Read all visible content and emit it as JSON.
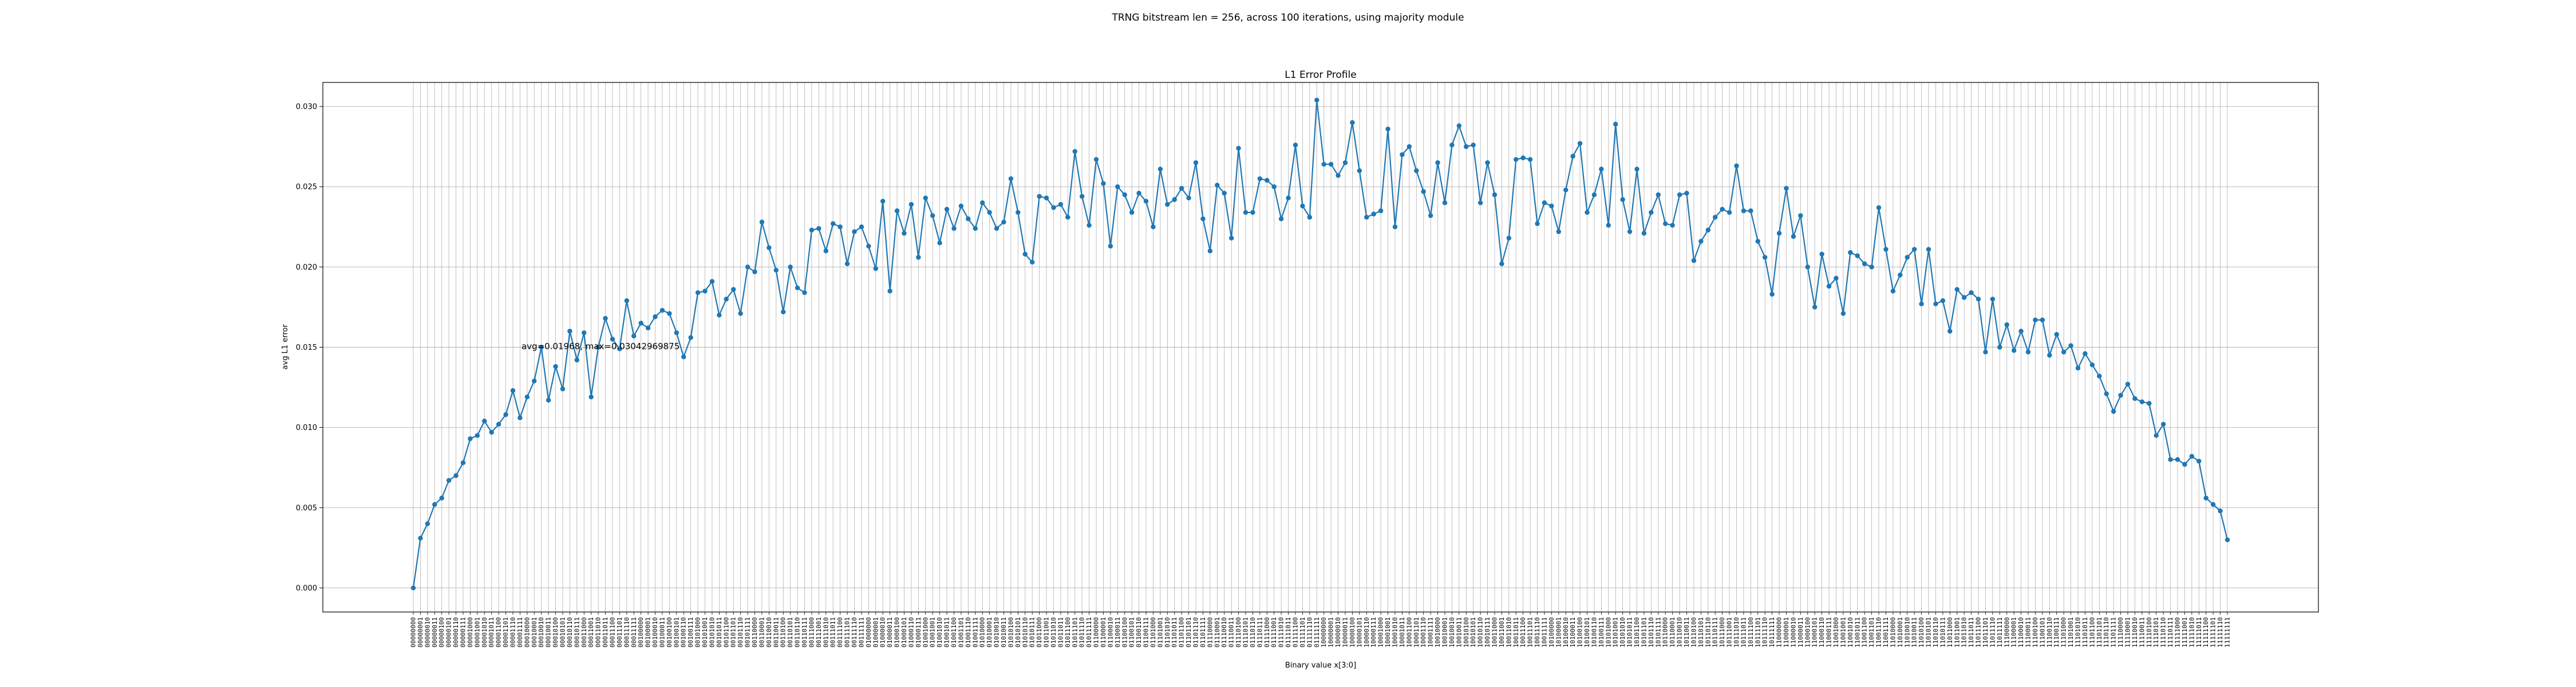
{
  "suptitle": "TRNG bitstream len = 256, across 100 iterations, using majority module",
  "chart_data": {
    "type": "line",
    "title": "L1 Error Profile",
    "xlabel": "Binary value x[3:0]",
    "ylabel": "avg L1 error",
    "ylim": [
      -0.0015,
      0.0315
    ],
    "yticks": [
      0.0,
      0.005,
      0.01,
      0.015,
      0.02,
      0.025,
      0.03
    ],
    "ytick_labels": [
      "0.000",
      "0.005",
      "0.010",
      "0.015",
      "0.020",
      "0.025",
      "0.030"
    ],
    "grid": true,
    "marker": "circle",
    "color": "#1f77b4",
    "annotation": "avg=0.01968, max=0.03042969875",
    "x": [
      "00000000",
      "00000001",
      "00000010",
      "00000011",
      "00000100",
      "00000101",
      "00000110",
      "00000111",
      "00001000",
      "00001001",
      "00001010",
      "00001011",
      "00001100",
      "00001101",
      "00001110",
      "00001111",
      "00010000",
      "00010001",
      "00010010",
      "00010011",
      "00010100",
      "00010101",
      "00010110",
      "00010111",
      "00011000",
      "00011001",
      "00011010",
      "00011011",
      "00011100",
      "00011101",
      "00011110",
      "00011111",
      "00100000",
      "00100001",
      "00100010",
      "00100011",
      "00100100",
      "00100101",
      "00100110",
      "00100111",
      "00101000",
      "00101001",
      "00101010",
      "00101011",
      "00101100",
      "00101101",
      "00101110",
      "00101111",
      "00110000",
      "00110001",
      "00110010",
      "00110011",
      "00110100",
      "00110101",
      "00110110",
      "00110111",
      "00111000",
      "00111001",
      "00111010",
      "00111011",
      "00111100",
      "00111101",
      "00111110",
      "00111111",
      "01000000",
      "01000001",
      "01000010",
      "01000011",
      "01000100",
      "01000101",
      "01000110",
      "01000111",
      "01001000",
      "01001001",
      "01001010",
      "01001011",
      "01001100",
      "01001101",
      "01001110",
      "01001111",
      "01010000",
      "01010001",
      "01010010",
      "01010011",
      "01010100",
      "01010101",
      "01010110",
      "01010111",
      "01011000",
      "01011001",
      "01011010",
      "01011011",
      "01011100",
      "01011101",
      "01011110",
      "01011111",
      "01100000",
      "01100001",
      "01100010",
      "01100011",
      "01100100",
      "01100101",
      "01100110",
      "01100111",
      "01101000",
      "01101001",
      "01101010",
      "01101011",
      "01101100",
      "01101101",
      "01101110",
      "01101111",
      "01110000",
      "01110001",
      "01110010",
      "01110011",
      "01110100",
      "01110101",
      "01110110",
      "01110111",
      "01111000",
      "01111001",
      "01111010",
      "01111011",
      "01111100",
      "01111101",
      "01111110",
      "01111111",
      "10000000",
      "10000001",
      "10000010",
      "10000011",
      "10000100",
      "10000101",
      "10000110",
      "10000111",
      "10001000",
      "10001001",
      "10001010",
      "10001011",
      "10001100",
      "10001101",
      "10001110",
      "10001111",
      "10010000",
      "10010001",
      "10010010",
      "10010011",
      "10010100",
      "10010101",
      "10010110",
      "10010111",
      "10011000",
      "10011001",
      "10011010",
      "10011011",
      "10011100",
      "10011101",
      "10011110",
      "10011111",
      "10100000",
      "10100001",
      "10100010",
      "10100011",
      "10100100",
      "10100101",
      "10100110",
      "10100111",
      "10101000",
      "10101001",
      "10101010",
      "10101011",
      "10101100",
      "10101101",
      "10101110",
      "10101111",
      "10110000",
      "10110001",
      "10110010",
      "10110011",
      "10110100",
      "10110101",
      "10110110",
      "10110111",
      "10111000",
      "10111001",
      "10111010",
      "10111011",
      "10111100",
      "10111101",
      "10111110",
      "10111111",
      "11000000",
      "11000001",
      "11000010",
      "11000011",
      "11000100",
      "11000101",
      "11000110",
      "11000111",
      "11001000",
      "11001001",
      "11001010",
      "11001011",
      "11001100",
      "11001101",
      "11001110",
      "11001111",
      "11010000",
      "11010001",
      "11010010",
      "11010011",
      "11010100",
      "11010101",
      "11010110",
      "11010111",
      "11011000",
      "11011001",
      "11011010",
      "11011011",
      "11011100",
      "11011101",
      "11011110",
      "11011111",
      "11100000",
      "11100001",
      "11100010",
      "11100011",
      "11100100",
      "11100101",
      "11100110",
      "11100111",
      "11101000",
      "11101001",
      "11101010",
      "11101011",
      "11101100",
      "11101101",
      "11101110",
      "11101111",
      "11110000",
      "11110001",
      "11110010",
      "11110011",
      "11110100",
      "11110101",
      "11110110",
      "11110111",
      "11111000",
      "11111001",
      "11111010",
      "11111011",
      "11111100",
      "11111101",
      "11111110",
      "11111111"
    ],
    "values": [
      0.0,
      0.0031,
      0.004,
      0.0052,
      0.0056,
      0.0067,
      0.007,
      0.0078,
      0.0093,
      0.0095,
      0.0104,
      0.0097,
      0.0102,
      0.0108,
      0.0123,
      0.0106,
      0.0119,
      0.0129,
      0.015,
      0.0117,
      0.0138,
      0.0124,
      0.016,
      0.0142,
      0.0159,
      0.0119,
      0.015,
      0.0168,
      0.0155,
      0.0149,
      0.0179,
      0.0157,
      0.0165,
      0.0162,
      0.0169,
      0.0173,
      0.0171,
      0.0159,
      0.0144,
      0.0156,
      0.0184,
      0.0185,
      0.0191,
      0.017,
      0.018,
      0.0186,
      0.0171,
      0.02,
      0.0197,
      0.0228,
      0.0212,
      0.0198,
      0.0172,
      0.02,
      0.0187,
      0.0184,
      0.0223,
      0.0224,
      0.021,
      0.0227,
      0.0225,
      0.0202,
      0.0222,
      0.0225,
      0.0213,
      0.0199,
      0.0241,
      0.0185,
      0.0235,
      0.0221,
      0.0239,
      0.0206,
      0.0243,
      0.0232,
      0.0215,
      0.0236,
      0.0224,
      0.0238,
      0.023,
      0.0224,
      0.024,
      0.0234,
      0.0224,
      0.0228,
      0.0255,
      0.0234,
      0.0208,
      0.0203,
      0.0244,
      0.0243,
      0.0237,
      0.0239,
      0.0231,
      0.0272,
      0.0244,
      0.0226,
      0.0267,
      0.0252,
      0.0213,
      0.025,
      0.0245,
      0.0234,
      0.0246,
      0.0241,
      0.0225,
      0.0261,
      0.0239,
      0.0242,
      0.0249,
      0.0243,
      0.0265,
      0.023,
      0.021,
      0.0251,
      0.0246,
      0.0218,
      0.0274,
      0.0234,
      0.0234,
      0.0255,
      0.0254,
      0.025,
      0.023,
      0.0243,
      0.0276,
      0.0238,
      0.0231,
      0.0304,
      0.0264,
      0.0264,
      0.0257,
      0.0265,
      0.029,
      0.026,
      0.0231,
      0.0233,
      0.0235,
      0.0286,
      0.0225,
      0.027,
      0.0275,
      0.026,
      0.0247,
      0.0232,
      0.0265,
      0.024,
      0.0276,
      0.0288,
      0.0275,
      0.0276,
      0.024,
      0.0265,
      0.0245,
      0.0202,
      0.0218,
      0.0267,
      0.0268,
      0.0267,
      0.0227,
      0.024,
      0.0238,
      0.0222,
      0.0248,
      0.0269,
      0.0277,
      0.0234,
      0.0245,
      0.0261,
      0.0226,
      0.0289,
      0.0242,
      0.0222,
      0.0261,
      0.0221,
      0.0234,
      0.0245,
      0.0227,
      0.0226,
      0.0245,
      0.0246,
      0.0204,
      0.0216,
      0.0223,
      0.0231,
      0.0236,
      0.0234,
      0.0263,
      0.0235,
      0.0235,
      0.0216,
      0.0206,
      0.0183,
      0.0221,
      0.0249,
      0.0219,
      0.0232,
      0.02,
      0.0175,
      0.0208,
      0.0188,
      0.0193,
      0.0171,
      0.0209,
      0.0207,
      0.0202,
      0.02,
      0.0237,
      0.0211,
      0.0185,
      0.0195,
      0.0206,
      0.0211,
      0.0177,
      0.0211,
      0.0177,
      0.0179,
      0.016,
      0.0186,
      0.0181,
      0.0184,
      0.018,
      0.0147,
      0.018,
      0.015,
      0.0164,
      0.0148,
      0.016,
      0.0147,
      0.0167,
      0.0167,
      0.0145,
      0.0158,
      0.0147,
      0.0151,
      0.0137,
      0.0146,
      0.0139,
      0.0132,
      0.0121,
      0.011,
      0.012,
      0.0127,
      0.0118,
      0.0116,
      0.0115,
      0.0095,
      0.0102,
      0.008,
      0.008,
      0.0077,
      0.0082,
      0.0079,
      0.0056,
      0.0052,
      0.0048,
      0.003
    ]
  }
}
